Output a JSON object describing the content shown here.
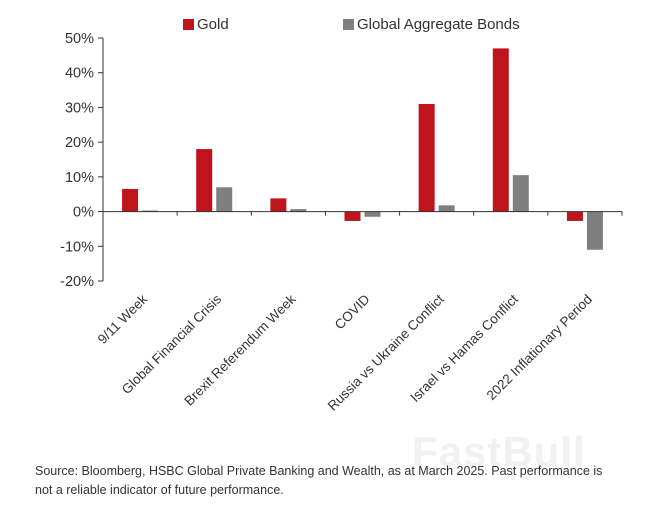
{
  "chart_data": {
    "type": "bar",
    "title": "",
    "xlabel": "",
    "ylabel": "",
    "categories": [
      "9/11 Week",
      "Global Financial Crisis",
      "Brexit Referendum Week",
      "COVID",
      "Russia vs Ukraine Conflict",
      "Israel vs Hamas Conflict",
      "2022 Inflationary Period"
    ],
    "series": [
      {
        "name": "Gold",
        "color": "#c0141c",
        "values": [
          6.5,
          18,
          3.8,
          -2.7,
          31,
          47,
          -2.7
        ]
      },
      {
        "name": "Global Aggregate Bonds",
        "color": "#7f7f7f",
        "values": [
          0.3,
          7,
          0.7,
          -1.5,
          1.8,
          10.5,
          -11
        ]
      }
    ],
    "ylim": [
      -20,
      50
    ],
    "yticks": [
      -20,
      -10,
      0,
      10,
      20,
      30,
      40,
      50
    ],
    "ytick_labels": [
      "-20%",
      "-10%",
      "0%",
      "10%",
      "20%",
      "30%",
      "40%",
      "50%"
    ],
    "legend_position": "top"
  },
  "legend": {
    "gold_label": "Gold",
    "bonds_label": "Global Aggregate Bonds"
  },
  "source_note": "Source: Bloomberg, HSBC Global Private Banking and Wealth, as at March 2025. Past performance is not a reliable indicator of future performance.",
  "watermark": "FastBull"
}
